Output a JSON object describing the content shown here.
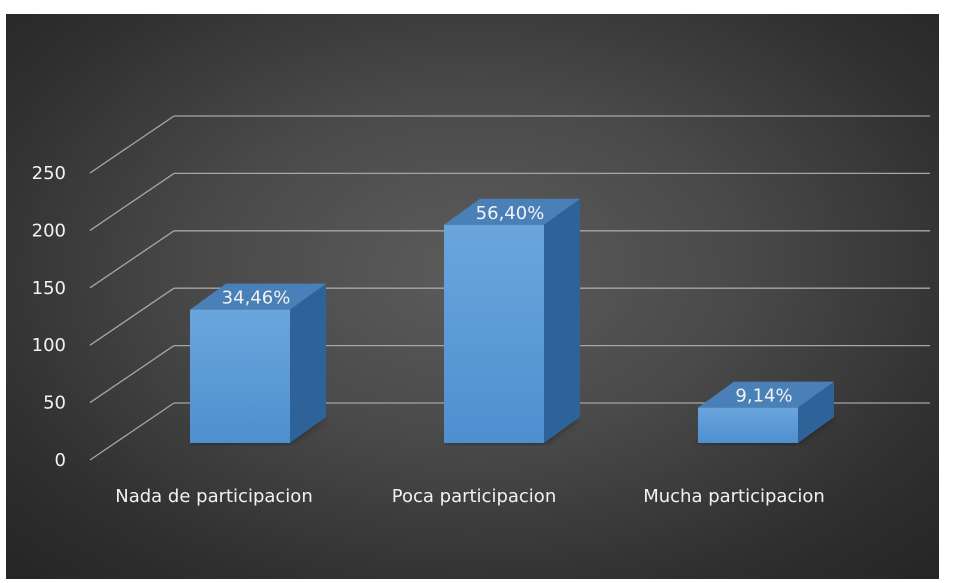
{
  "chart_data": {
    "type": "bar",
    "style": "3d-column",
    "categories": [
      "Nada de participacion",
      "Poca participacion",
      "Mucha participacion"
    ],
    "series": [
      {
        "values": [
          132,
          216,
          35
        ],
        "data_labels": [
          "34,46%",
          "56,40%",
          "9,14%"
        ]
      }
    ],
    "yticks": [
      0,
      50,
      100,
      150,
      200,
      250
    ],
    "ylim": [
      0,
      250
    ],
    "grid": true,
    "legend": "none",
    "colors": {
      "background": "#3d3d3d",
      "bar_front": "#5b9bd5",
      "bar_side": "#2e6399",
      "bar_top": "#4a80b8",
      "grid": "#a6a6a6",
      "text": "#f2f2f2"
    }
  }
}
